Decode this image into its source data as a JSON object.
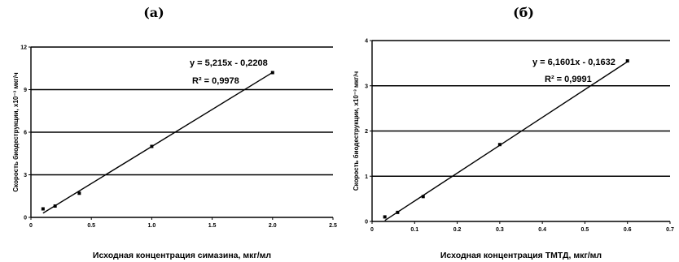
{
  "chart_data": [
    {
      "type": "scatter",
      "panel_label": "(а)",
      "xlabel": "Исходная концентрация симазина, мкг/мл",
      "ylabel": "Скорость биодеструкции, x10⁻³ мкг/ч",
      "xlim": [
        0,
        2.5
      ],
      "ylim": [
        0,
        12
      ],
      "x_ticks": [
        "0",
        "0.5",
        "1.0",
        "1.5",
        "2.0",
        "2.5"
      ],
      "y_ticks": [
        "0",
        "3",
        "6",
        "9",
        "12"
      ],
      "series": [
        {
          "points": [
            [
              0.1,
              0.6
            ],
            [
              0.2,
              0.8
            ],
            [
              0.4,
              1.7
            ],
            [
              1.0,
              5.0
            ],
            [
              2.0,
              10.2
            ]
          ]
        }
      ],
      "trendline": {
        "slope": 5.215,
        "intercept": -0.2208,
        "x_range": [
          0.1,
          2.0
        ]
      },
      "equation": "y = 5,215x - 0,2208",
      "r2": "R² = 0,9978",
      "grid": "horizontal",
      "legend": "none"
    },
    {
      "type": "scatter",
      "panel_label": "(б)",
      "xlabel": "Исходная концентрация ТМТД, мкг/мл",
      "ylabel": "Скорость биодеструкции, x10⁻³ мкг/ч",
      "xlim": [
        0,
        0.7
      ],
      "ylim": [
        0,
        4
      ],
      "x_ticks": [
        "0",
        "0.1",
        "0.2",
        "0.3",
        "0.4",
        "0.5",
        "0.6",
        "0.7"
      ],
      "y_ticks": [
        "0",
        "1",
        "2",
        "3",
        "4"
      ],
      "series": [
        {
          "points": [
            [
              0.03,
              0.1
            ],
            [
              0.06,
              0.2
            ],
            [
              0.12,
              0.55
            ],
            [
              0.3,
              1.7
            ],
            [
              0.6,
              3.55
            ]
          ]
        }
      ],
      "trendline": {
        "slope": 6.1601,
        "intercept": -0.1632,
        "x_range": [
          0.03,
          0.6
        ]
      },
      "equation": "y = 6,1601x - 0,1632",
      "r2": "R² = 0,9991",
      "grid": "horizontal",
      "legend": "none"
    }
  ]
}
